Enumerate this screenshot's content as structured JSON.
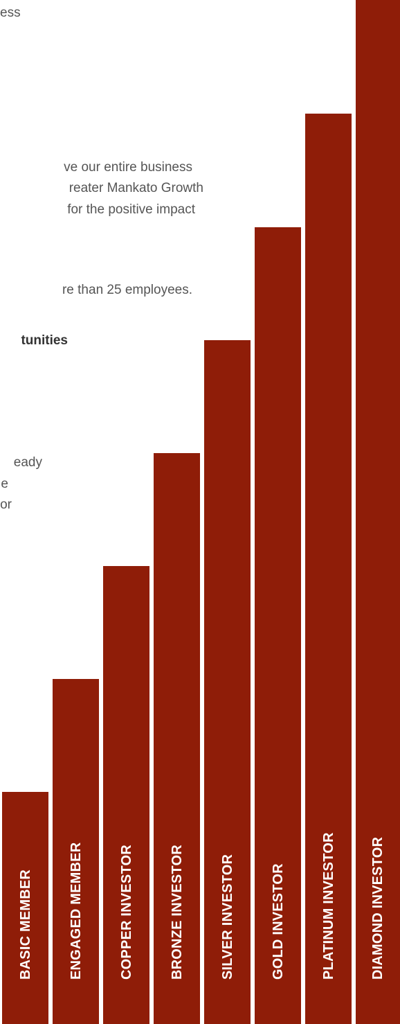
{
  "intro_text": {
    "line_1": "ess",
    "para_1": [
      "ve our entire business",
      "reater Mankato Growth",
      "for the positive impact"
    ],
    "para_2": "re than 25 employees.",
    "heading": "tunities",
    "para_3": [
      "eady",
      "e",
      "or"
    ]
  },
  "accent_color": "#8f1d08",
  "tiers": [
    {
      "label": "BASIC MEMBER",
      "level": 1
    },
    {
      "label": "ENGAGED MEMBER",
      "level": 2
    },
    {
      "label": "COPPER INVESTOR",
      "level": 3
    },
    {
      "label": "BRONZE INVESTOR",
      "level": 4
    },
    {
      "label": "SILVER INVESTOR",
      "level": 5
    },
    {
      "label": "GOLD INVESTOR",
      "level": 6
    },
    {
      "label": "PLATINUM INVESTOR",
      "level": 7
    },
    {
      "label": "DIAMOND INVESTOR",
      "level": 8
    }
  ]
}
